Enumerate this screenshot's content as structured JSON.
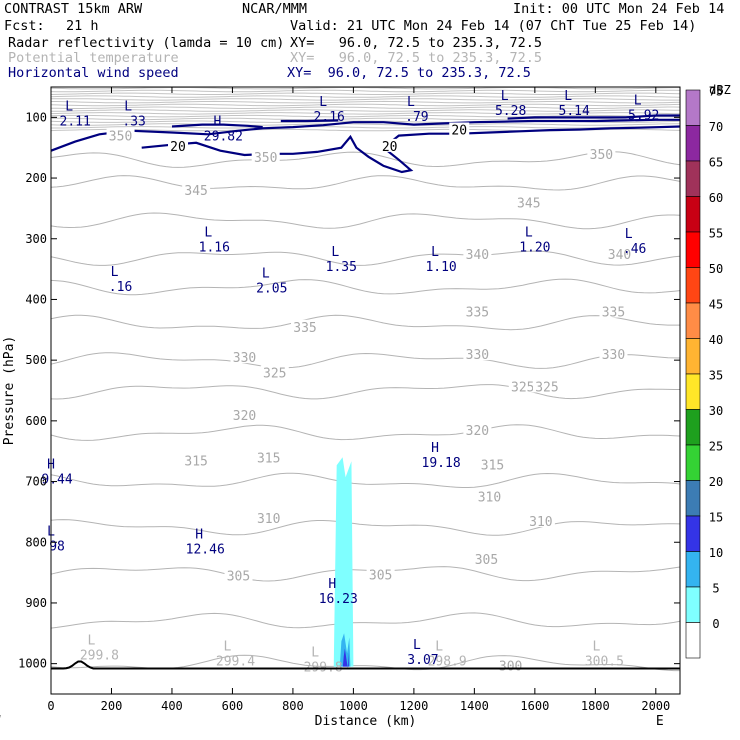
{
  "header": {
    "model": "CONTRAST 15km ARW",
    "center": "NCAR/MMM",
    "init": "Init: 00 UTC Mon 24 Feb 14",
    "fcst_label": "Fcst:",
    "fcst_value": "21 h",
    "valid": "Valid: 21 UTC Mon 24 Feb 14 (07 ChT Tue 25 Feb 14)",
    "fields": [
      {
        "name": "Radar reflectivity (lamda = 10 cm)",
        "xy": "XY=   96.0, 72.5 to 235.3, 72.5",
        "color": "#000000"
      },
      {
        "name": "Potential temperature",
        "xy": "XY=   96.0, 72.5 to 235.3, 72.5",
        "color": "#b4b4b4"
      },
      {
        "name": "Horizontal wind speed",
        "xy": "XY=  96.0, 72.5 to 235.3, 72.5",
        "color": "#00007f"
      }
    ]
  },
  "chart_data": {
    "type": "contour_cross_section",
    "xlabel": "Distance (km)",
    "ylabel": "Pressure (hPa)",
    "xlim": [
      0,
      2080
    ],
    "ylim": [
      1050,
      50
    ],
    "x_ticks": [
      0,
      200,
      400,
      600,
      800,
      1000,
      1200,
      1400,
      1600,
      1800,
      2000
    ],
    "y_ticks": [
      100,
      200,
      300,
      400,
      500,
      600,
      700,
      800,
      900,
      1000
    ],
    "x_end_labels": {
      "left": "W",
      "right": "E"
    },
    "colorbar": {
      "unit": "dBZ",
      "levels": [
        0,
        5,
        10,
        15,
        20,
        25,
        30,
        35,
        40,
        45,
        50,
        55,
        60,
        65,
        70,
        75
      ],
      "colors": [
        "#ffffff",
        "#7fffff",
        "#34b4f0",
        "#3434e6",
        "#3c7cb4",
        "#34d234",
        "#1ea01e",
        "#ffe628",
        "#ffb432",
        "#ff8c46",
        "#ff4614",
        "#ff0000",
        "#c80014",
        "#a0325a",
        "#8c28a0",
        "#b478c8"
      ]
    },
    "series": [
      {
        "name": "Potential temperature",
        "units": "K",
        "color": "#b4b4b4",
        "contour_labels": [
          {
            "x": 480,
            "p": 220,
            "text": "345"
          },
          {
            "x": 1580,
            "p": 240,
            "text": "345"
          },
          {
            "x": 230,
            "p": 130,
            "text": "350"
          },
          {
            "x": 710,
            "p": 165,
            "text": "350"
          },
          {
            "x": 1820,
            "p": 160,
            "text": "350"
          },
          {
            "x": 1410,
            "p": 325,
            "text": "340"
          },
          {
            "x": 1880,
            "p": 325,
            "text": "340"
          },
          {
            "x": 1410,
            "p": 420,
            "text": "335"
          },
          {
            "x": 840,
            "p": 445,
            "text": "335"
          },
          {
            "x": 1860,
            "p": 420,
            "text": "335"
          },
          {
            "x": 640,
            "p": 495,
            "text": "330"
          },
          {
            "x": 1410,
            "p": 490,
            "text": "330"
          },
          {
            "x": 1860,
            "p": 490,
            "text": "330"
          },
          {
            "x": 740,
            "p": 520,
            "text": "325"
          },
          {
            "x": 1560,
            "p": 543,
            "text": "325"
          },
          {
            "x": 1640,
            "p": 543,
            "text": "325"
          },
          {
            "x": 640,
            "p": 590,
            "text": "320"
          },
          {
            "x": 1410,
            "p": 615,
            "text": "320"
          },
          {
            "x": 480,
            "p": 665,
            "text": "315"
          },
          {
            "x": 720,
            "p": 660,
            "text": "315"
          },
          {
            "x": 1460,
            "p": 672,
            "text": "315"
          },
          {
            "x": 720,
            "p": 760,
            "text": "310"
          },
          {
            "x": 1450,
            "p": 725,
            "text": "310"
          },
          {
            "x": 1620,
            "p": 765,
            "text": "310"
          },
          {
            "x": 620,
            "p": 855,
            "text": "305"
          },
          {
            "x": 1090,
            "p": 853,
            "text": "305"
          },
          {
            "x": 1440,
            "p": 828,
            "text": "305"
          },
          {
            "x": 1520,
            "p": 1003,
            "text": "300"
          }
        ],
        "extrema": [
          {
            "kind": "L",
            "x": 160,
            "p": 990,
            "text": "299.8"
          },
          {
            "kind": "L",
            "x": 610,
            "p": 1000,
            "text": "299.4"
          },
          {
            "kind": "L",
            "x": 900,
            "p": 1010,
            "text": "299.8"
          },
          {
            "kind": "L",
            "x": 1310,
            "p": 1000,
            "text": "298.9"
          },
          {
            "kind": "L",
            "x": 1830,
            "p": 1000,
            "text": "300.5"
          }
        ]
      },
      {
        "name": "Horizontal wind speed",
        "units": "m/s",
        "color": "#00007f",
        "contour_labels": [
          {
            "x": 420,
            "p": 147,
            "text": "20"
          },
          {
            "x": 1120,
            "p": 147,
            "text": "20"
          },
          {
            "x": 1350,
            "p": 120,
            "text": "20"
          }
        ],
        "extrema": [
          {
            "kind": "L",
            "x": 80,
            "p": 110,
            "text": "2.11"
          },
          {
            "kind": "L",
            "x": 275,
            "p": 110,
            "text": ".33"
          },
          {
            "kind": "H",
            "x": 570,
            "p": 135,
            "text": "29.82"
          },
          {
            "kind": "L",
            "x": 920,
            "p": 103,
            "text": "2.16"
          },
          {
            "kind": "L",
            "x": 1210,
            "p": 103,
            "text": ".79"
          },
          {
            "kind": "L",
            "x": 1520,
            "p": 93,
            "text": "5.28"
          },
          {
            "kind": "L",
            "x": 1730,
            "p": 93,
            "text": "5.14"
          },
          {
            "kind": "L",
            "x": 1960,
            "p": 100,
            "text": "5.92"
          },
          {
            "kind": "L",
            "x": 540,
            "p": 318,
            "text": "1.16"
          },
          {
            "kind": "L",
            "x": 230,
            "p": 383,
            "text": ".16"
          },
          {
            "kind": "L",
            "x": 730,
            "p": 385,
            "text": "2.05"
          },
          {
            "kind": "L",
            "x": 960,
            "p": 350,
            "text": "1.35"
          },
          {
            "kind": "L",
            "x": 1290,
            "p": 350,
            "text": "1.10"
          },
          {
            "kind": "L",
            "x": 1600,
            "p": 318,
            "text": "1.20"
          },
          {
            "kind": "L",
            "x": 1930,
            "p": 320,
            "text": ".46"
          },
          {
            "kind": "H",
            "x": 1290,
            "p": 673,
            "text": "19.18"
          },
          {
            "kind": "H",
            "x": 20,
            "p": 700,
            "text": "9.44"
          },
          {
            "kind": "H",
            "x": 510,
            "p": 815,
            "text": "12.46"
          },
          {
            "kind": "L",
            "x": 20,
            "p": 810,
            "text": "98"
          },
          {
            "kind": "H",
            "x": 950,
            "p": 897,
            "text": "16.23"
          },
          {
            "kind": "L",
            "x": 1230,
            "p": 997,
            "text": "3.07"
          }
        ]
      },
      {
        "name": "Radar reflectivity",
        "units": "dBZ",
        "cells": [
          {
            "x_range": [
              935,
              1000
            ],
            "p_top": 660,
            "p_bottom": 1005,
            "dbz": 5
          },
          {
            "x_range": [
              955,
              990
            ],
            "p_top": 950,
            "p_bottom": 1005,
            "dbz": 10
          },
          {
            "x_range": [
              965,
              985
            ],
            "p_top": 975,
            "p_bottom": 1005,
            "dbz": 15
          }
        ]
      }
    ]
  }
}
